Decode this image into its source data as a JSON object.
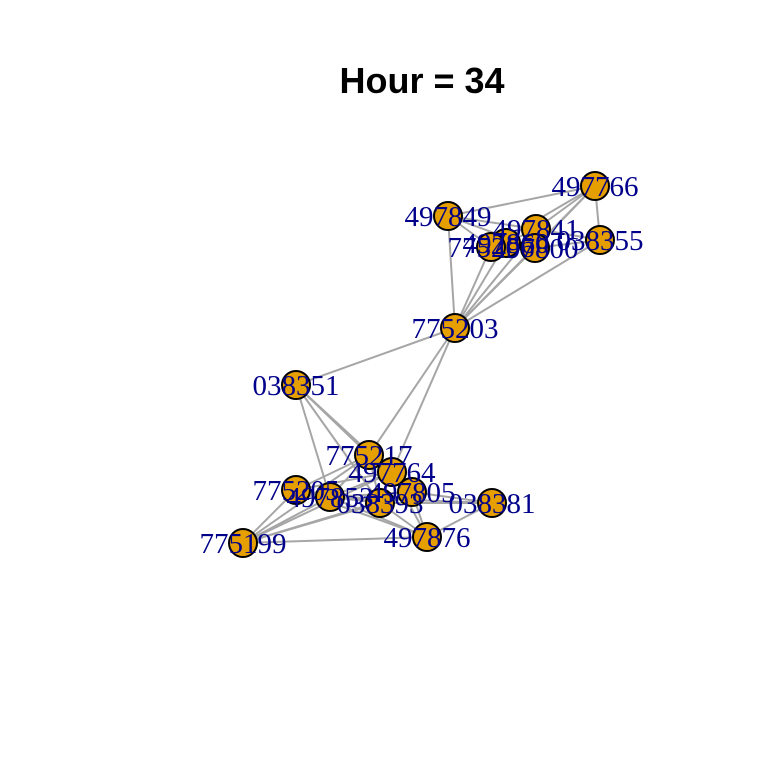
{
  "title": "Hour = 34",
  "colors": {
    "node_fill": "#e69f00",
    "node_stroke": "#000000",
    "edge": "#a6a6a6",
    "label": "#00008b",
    "title": "#000000"
  },
  "nodes": [
    {
      "id": "497766",
      "label": "497766"
    },
    {
      "id": "497849",
      "label": "497849"
    },
    {
      "id": "497841",
      "label": "497841"
    },
    {
      "id": "497860",
      "label": "497860"
    },
    {
      "id": "775206",
      "label": "775206"
    },
    {
      "id": "497800",
      "label": "497800"
    },
    {
      "id": "038355",
      "label": "038355"
    },
    {
      "id": "775203",
      "label": "775203"
    },
    {
      "id": "038351",
      "label": "038351"
    },
    {
      "id": "775217",
      "label": "775217"
    },
    {
      "id": "497764",
      "label": "497764"
    },
    {
      "id": "775205",
      "label": "775205"
    },
    {
      "id": "497805",
      "label": "497805"
    },
    {
      "id": "497853",
      "label": "497853"
    },
    {
      "id": "038393",
      "label": "038393"
    },
    {
      "id": "038381",
      "label": "038381"
    },
    {
      "id": "775199",
      "label": "775199"
    },
    {
      "id": "497876",
      "label": "497876"
    }
  ],
  "edges": [
    [
      "497766",
      "497849"
    ],
    [
      "497766",
      "497841"
    ],
    [
      "497766",
      "038355"
    ],
    [
      "497766",
      "775206"
    ],
    [
      "497766",
      "497800"
    ],
    [
      "497849",
      "497841"
    ],
    [
      "497849",
      "775206"
    ],
    [
      "497849",
      "497800"
    ],
    [
      "497841",
      "038355"
    ],
    [
      "497841",
      "497800"
    ],
    [
      "497841",
      "497860"
    ],
    [
      "497860",
      "775206"
    ],
    [
      "497860",
      "497800"
    ],
    [
      "775206",
      "497800"
    ],
    [
      "497800",
      "038355"
    ],
    [
      "775203",
      "497766"
    ],
    [
      "775203",
      "497849"
    ],
    [
      "775203",
      "497841"
    ],
    [
      "775203",
      "497860"
    ],
    [
      "775203",
      "775206"
    ],
    [
      "775203",
      "497800"
    ],
    [
      "775203",
      "038355"
    ],
    [
      "775203",
      "038351"
    ],
    [
      "775203",
      "775217"
    ],
    [
      "775203",
      "497764"
    ],
    [
      "038351",
      "775217"
    ],
    [
      "038351",
      "497853"
    ],
    [
      "038351",
      "038393"
    ],
    [
      "038351",
      "497805"
    ],
    [
      "775217",
      "497764"
    ],
    [
      "775217",
      "775205"
    ],
    [
      "775217",
      "497853"
    ],
    [
      "775217",
      "038393"
    ],
    [
      "775217",
      "497805"
    ],
    [
      "775217",
      "775199"
    ],
    [
      "497764",
      "775205"
    ],
    [
      "497764",
      "497853"
    ],
    [
      "497764",
      "038393"
    ],
    [
      "497764",
      "497805"
    ],
    [
      "497764",
      "497876"
    ],
    [
      "775205",
      "497853"
    ],
    [
      "775205",
      "038393"
    ],
    [
      "775205",
      "775199"
    ],
    [
      "775205",
      "497876"
    ],
    [
      "497853",
      "038393"
    ],
    [
      "497853",
      "497805"
    ],
    [
      "497853",
      "775199"
    ],
    [
      "497853",
      "497876"
    ],
    [
      "038393",
      "497805"
    ],
    [
      "038393",
      "038381"
    ],
    [
      "038393",
      "775199"
    ],
    [
      "038393",
      "497876"
    ],
    [
      "497805",
      "038381"
    ],
    [
      "497805",
      "497876"
    ],
    [
      "497805",
      "775199"
    ],
    [
      "038381",
      "497876"
    ],
    [
      "038381",
      "497853"
    ],
    [
      "775199",
      "497876"
    ],
    [
      "775199",
      "497764"
    ]
  ]
}
